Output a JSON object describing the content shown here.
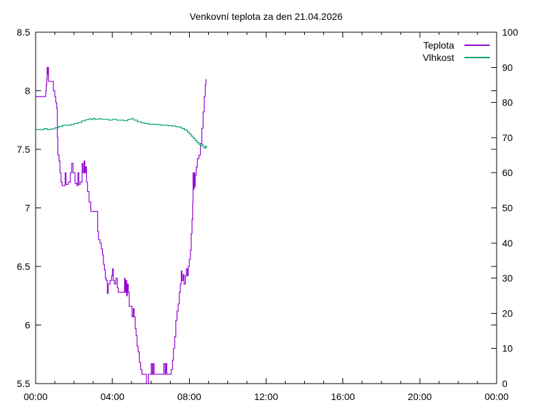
{
  "page": {
    "background": "#ffffff"
  },
  "chart_data": {
    "type": "line",
    "title": "Venkovní teplota za den 21.04.2026",
    "grid": false,
    "plot_background": "#ffffff",
    "border_color": "#000000",
    "legend": {
      "position": "top-right-inside",
      "entries": [
        {
          "label": "Teplota",
          "color": "#9400d3"
        },
        {
          "label": "Vlhkost",
          "color": "#009e73"
        }
      ]
    },
    "x_axis": {
      "kind": "time-of-day",
      "range_hours": [
        0,
        24
      ],
      "major_tick_hours": [
        0,
        4,
        8,
        12,
        16,
        20,
        24
      ],
      "major_tick_labels": [
        "00:00",
        "04:00",
        "08:00",
        "12:00",
        "16:00",
        "20:00",
        "00:00"
      ],
      "minor_tick_interval_hours": 1
    },
    "y_axis_left": {
      "series": "Teplota",
      "range": [
        5.5,
        8.5
      ],
      "tick_values": [
        8.5,
        8,
        7.5,
        7,
        6.5,
        6,
        5.5
      ],
      "tick_labels": [
        "8.5",
        "8",
        "7.5",
        "7",
        "6.5",
        "6",
        "5.5"
      ]
    },
    "y_axis_right": {
      "series": "Vlhkost",
      "range": [
        0,
        100
      ],
      "tick_values": [
        100,
        90,
        80,
        70,
        60,
        50,
        40,
        30,
        20,
        10,
        0
      ],
      "tick_labels": [
        "100",
        "90",
        "80",
        "70",
        "60",
        "50",
        "40",
        "30",
        "20",
        "10",
        "0"
      ]
    },
    "series": [
      {
        "name": "Teplota",
        "axis": "left",
        "color": "#9400d3",
        "style": "steps",
        "points": [
          [
            0.0,
            7.95
          ],
          [
            0.5,
            7.95
          ],
          [
            0.53,
            8.0
          ],
          [
            0.55,
            8.05
          ],
          [
            0.58,
            8.1
          ],
          [
            0.6,
            8.2
          ],
          [
            0.62,
            8.14
          ],
          [
            0.64,
            8.2
          ],
          [
            0.67,
            8.08
          ],
          [
            0.88,
            8.08
          ],
          [
            0.92,
            8.0
          ],
          [
            1.0,
            7.95
          ],
          [
            1.05,
            7.9
          ],
          [
            1.1,
            7.85
          ],
          [
            1.13,
            7.6
          ],
          [
            1.16,
            7.45
          ],
          [
            1.22,
            7.4
          ],
          [
            1.27,
            7.3
          ],
          [
            1.32,
            7.22
          ],
          [
            1.38,
            7.19
          ],
          [
            1.5,
            7.19
          ],
          [
            1.54,
            7.3
          ],
          [
            1.58,
            7.2
          ],
          [
            1.7,
            7.22
          ],
          [
            1.8,
            7.3
          ],
          [
            1.88,
            7.38
          ],
          [
            1.95,
            7.3
          ],
          [
            2.05,
            7.21
          ],
          [
            2.15,
            7.19
          ],
          [
            2.2,
            7.3
          ],
          [
            2.25,
            7.2
          ],
          [
            2.32,
            7.22
          ],
          [
            2.42,
            7.38
          ],
          [
            2.46,
            7.3
          ],
          [
            2.52,
            7.4
          ],
          [
            2.56,
            7.3
          ],
          [
            2.6,
            7.35
          ],
          [
            2.65,
            7.22
          ],
          [
            2.7,
            7.14
          ],
          [
            2.78,
            7.05
          ],
          [
            2.87,
            6.97
          ],
          [
            3.2,
            6.97
          ],
          [
            3.23,
            6.8
          ],
          [
            3.27,
            6.73
          ],
          [
            3.35,
            6.7
          ],
          [
            3.42,
            6.65
          ],
          [
            3.48,
            6.6
          ],
          [
            3.53,
            6.52
          ],
          [
            3.58,
            6.47
          ],
          [
            3.63,
            6.4
          ],
          [
            3.68,
            6.38
          ],
          [
            3.73,
            6.27
          ],
          [
            3.78,
            6.35
          ],
          [
            3.88,
            6.38
          ],
          [
            3.95,
            6.42
          ],
          [
            4.0,
            6.48
          ],
          [
            4.04,
            6.38
          ],
          [
            4.1,
            6.35
          ],
          [
            4.18,
            6.4
          ],
          [
            4.25,
            6.32
          ],
          [
            4.3,
            6.28
          ],
          [
            4.6,
            6.28
          ],
          [
            4.63,
            6.4
          ],
          [
            4.66,
            6.28
          ],
          [
            4.7,
            6.38
          ],
          [
            4.74,
            6.25
          ],
          [
            4.78,
            6.35
          ],
          [
            4.82,
            6.28
          ],
          [
            4.87,
            6.16
          ],
          [
            4.97,
            6.16
          ],
          [
            5.02,
            6.07
          ],
          [
            5.08,
            6.14
          ],
          [
            5.13,
            6.07
          ],
          [
            5.18,
            5.97
          ],
          [
            5.23,
            5.91
          ],
          [
            5.28,
            5.82
          ],
          [
            5.34,
            5.77
          ],
          [
            5.4,
            5.68
          ],
          [
            5.47,
            5.62
          ],
          [
            5.53,
            5.58
          ],
          [
            5.73,
            5.58
          ],
          [
            5.77,
            5.5
          ],
          [
            5.84,
            5.5
          ],
          [
            5.87,
            5.58
          ],
          [
            5.98,
            5.58
          ],
          [
            6.02,
            5.67
          ],
          [
            6.07,
            5.58
          ],
          [
            6.12,
            5.67
          ],
          [
            6.17,
            5.58
          ],
          [
            6.62,
            5.58
          ],
          [
            6.67,
            5.67
          ],
          [
            6.74,
            5.58
          ],
          [
            6.78,
            5.67
          ],
          [
            6.83,
            5.58
          ],
          [
            7.0,
            5.58
          ],
          [
            7.06,
            5.62
          ],
          [
            7.12,
            5.7
          ],
          [
            7.18,
            5.8
          ],
          [
            7.24,
            5.9
          ],
          [
            7.3,
            6.04
          ],
          [
            7.36,
            6.12
          ],
          [
            7.42,
            6.18
          ],
          [
            7.48,
            6.28
          ],
          [
            7.53,
            6.35
          ],
          [
            7.58,
            6.46
          ],
          [
            7.62,
            6.38
          ],
          [
            7.68,
            6.43
          ],
          [
            7.73,
            6.35
          ],
          [
            7.8,
            6.42
          ],
          [
            7.85,
            6.48
          ],
          [
            7.9,
            6.42
          ],
          [
            7.95,
            6.5
          ],
          [
            8.0,
            6.56
          ],
          [
            8.06,
            6.64
          ],
          [
            8.1,
            6.78
          ],
          [
            8.14,
            6.9
          ],
          [
            8.18,
            7.05
          ],
          [
            8.2,
            7.3
          ],
          [
            8.22,
            7.16
          ],
          [
            8.25,
            7.3
          ],
          [
            8.28,
            7.18
          ],
          [
            8.31,
            7.28
          ],
          [
            8.36,
            7.35
          ],
          [
            8.42,
            7.42
          ],
          [
            8.5,
            7.45
          ],
          [
            8.58,
            7.55
          ],
          [
            8.65,
            7.68
          ],
          [
            8.72,
            7.82
          ],
          [
            8.78,
            7.95
          ],
          [
            8.83,
            8.05
          ],
          [
            8.87,
            8.1
          ]
        ]
      },
      {
        "name": "Vlhkost",
        "axis": "right",
        "color": "#009e73",
        "style": "steps",
        "points": [
          [
            0.0,
            72.3
          ],
          [
            0.3,
            72.3
          ],
          [
            0.45,
            72.6
          ],
          [
            0.6,
            72.3
          ],
          [
            0.8,
            72.5
          ],
          [
            1.0,
            72.8
          ],
          [
            1.2,
            73.2
          ],
          [
            1.4,
            73.5
          ],
          [
            1.6,
            73.5
          ],
          [
            1.8,
            73.7
          ],
          [
            2.0,
            74.0
          ],
          [
            2.2,
            74.3
          ],
          [
            2.4,
            74.8
          ],
          [
            2.6,
            75.1
          ],
          [
            2.75,
            75.3
          ],
          [
            2.9,
            75.1
          ],
          [
            3.0,
            75.5
          ],
          [
            3.1,
            75.2
          ],
          [
            3.25,
            75.4
          ],
          [
            3.4,
            75.2
          ],
          [
            3.6,
            75.2
          ],
          [
            3.8,
            75.0
          ],
          [
            4.0,
            75.2
          ],
          [
            4.2,
            75.0
          ],
          [
            4.4,
            75.0
          ],
          [
            4.6,
            74.8
          ],
          [
            4.8,
            75.2
          ],
          [
            5.0,
            75.4
          ],
          [
            5.12,
            75.0
          ],
          [
            5.3,
            74.5
          ],
          [
            5.5,
            74.2
          ],
          [
            5.7,
            74.0
          ],
          [
            5.9,
            73.8
          ],
          [
            6.1,
            73.8
          ],
          [
            6.3,
            73.7
          ],
          [
            6.5,
            73.5
          ],
          [
            6.7,
            73.5
          ],
          [
            6.9,
            73.4
          ],
          [
            7.1,
            73.3
          ],
          [
            7.3,
            73.1
          ],
          [
            7.45,
            73.0
          ],
          [
            7.6,
            72.6
          ],
          [
            7.75,
            72.2
          ],
          [
            7.9,
            71.6
          ],
          [
            8.0,
            71.1
          ],
          [
            8.1,
            70.4
          ],
          [
            8.2,
            69.8
          ],
          [
            8.3,
            69.2
          ],
          [
            8.4,
            68.6
          ],
          [
            8.5,
            68.1
          ],
          [
            8.58,
            67.7
          ],
          [
            8.65,
            68.0
          ],
          [
            8.72,
            67.3
          ],
          [
            8.8,
            67.0
          ],
          [
            8.85,
            67.6
          ],
          [
            8.9,
            67.2
          ]
        ]
      }
    ]
  }
}
